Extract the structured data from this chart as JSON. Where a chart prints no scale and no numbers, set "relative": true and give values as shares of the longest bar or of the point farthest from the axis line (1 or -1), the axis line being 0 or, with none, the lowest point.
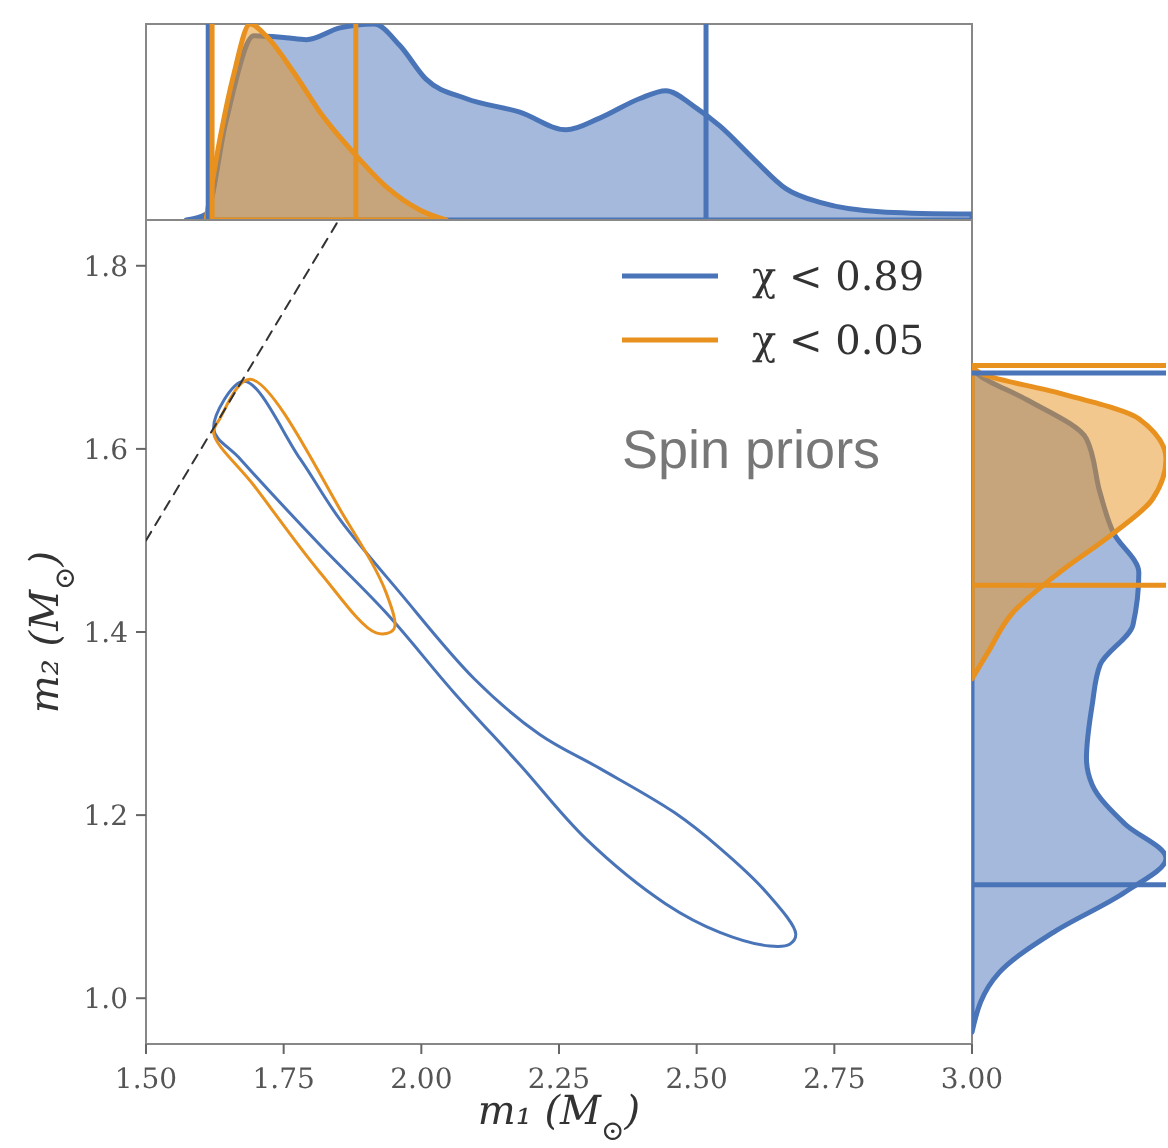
{
  "chart_data": [
    {
      "type": "area",
      "relative": true,
      "xlim": [
        1.5,
        3.0
      ],
      "legend": "bottom right",
      "series": [
        {
          "name": "χ < 0.89",
          "color": "#4a74b8",
          "x": [
            1.573,
            1.609,
            1.645,
            1.696,
            1.754,
            1.791,
            1.852,
            1.914,
            1.961,
            2.008,
            2.081,
            2.179,
            2.263,
            2.324,
            2.397,
            2.444,
            2.495,
            2.542,
            2.604,
            2.662,
            2.724,
            2.844,
            3.0
          ],
          "values": [
            0,
            0.03,
            0.5,
            0.94,
            0.93,
            0.92,
            0.98,
            1,
            0.89,
            0.72,
            0.62,
            0.55,
            0.46,
            0.52,
            0.62,
            0.66,
            0.58,
            0.48,
            0.31,
            0.16,
            0.09,
            0.04,
            0.03
          ]
        },
        {
          "name": "χ < 0.05",
          "color": "#e8911e",
          "x": [
            1.609,
            1.634,
            1.66,
            1.689,
            1.718,
            1.769,
            1.816,
            1.878,
            1.936,
            1.998,
            2.045
          ],
          "values": [
            0,
            0.41,
            0.75,
            1,
            0.94,
            0.75,
            0.55,
            0.34,
            0.17,
            0.05,
            0
          ]
        }
      ],
      "ref_lines": [
        {
          "axis": "x",
          "value": 1.613,
          "color": "#4a74b8"
        },
        {
          "axis": "x",
          "value": 2.517,
          "color": "#4a74b8"
        },
        {
          "axis": "x",
          "value": 1.62,
          "color": "#e8911e"
        },
        {
          "axis": "x",
          "value": 1.881,
          "color": "#e8911e"
        }
      ]
    },
    {
      "type": "line",
      "xlim": [
        1.5,
        3.0
      ],
      "ylim": [
        0.95,
        1.85
      ],
      "xlabel": "m₁ (M$_{⊙}$)",
      "ylabel": "m₂ (M$_{⊙}$)",
      "annotations": [
        "Spin priors"
      ],
      "xticks": [
        {
          "value": 1.5,
          "label": "1.50"
        },
        {
          "value": 1.75,
          "label": "1.75"
        },
        {
          "value": 2.0,
          "label": "2.00"
        },
        {
          "value": 2.25,
          "label": "2.25"
        },
        {
          "value": 2.5,
          "label": "2.50"
        },
        {
          "value": 2.75,
          "label": "2.75"
        },
        {
          "value": 3.0,
          "label": "3.00"
        }
      ],
      "yticks": [
        {
          "value": 1.0,
          "label": "1.0"
        },
        {
          "value": 1.2,
          "label": "1.2"
        },
        {
          "value": 1.4,
          "label": "1.4"
        },
        {
          "value": 1.6,
          "label": "1.6"
        },
        {
          "value": 1.8,
          "label": "1.8"
        }
      ],
      "series": [
        {
          "color": "#333333",
          "line_style": "dashed",
          "x": [
            1.5,
            1.85
          ],
          "values": [
            1.5,
            1.85
          ]
        }
      ]
    },
    {
      "type": "area",
      "orientation": "horizontal",
      "relative": true,
      "ylim": [
        0.95,
        1.85
      ],
      "series": [
        {
          "color": "#4a74b8",
          "x": [
            0.963,
            1.028,
            1.072,
            1.116,
            1.153,
            1.19,
            1.233,
            1.262,
            1.321,
            1.364,
            1.408,
            1.465,
            1.508,
            1.552,
            1.611,
            1.654,
            1.68,
            1.687
          ],
          "values": [
            0,
            0.14,
            0.42,
            0.79,
            1,
            0.79,
            0.62,
            0.59,
            0.62,
            0.66,
            0.83,
            0.86,
            0.73,
            0.66,
            0.59,
            0.28,
            0.04,
            0
          ]
        },
        {
          "color": "#e8911e",
          "x": [
            1.349,
            1.377,
            1.421,
            1.465,
            1.508,
            1.545,
            1.589,
            1.633,
            1.661,
            1.683,
            1.691
          ],
          "values": [
            0,
            0.08,
            0.21,
            0.45,
            0.73,
            0.93,
            1,
            0.86,
            0.45,
            0.04,
            0
          ]
        }
      ],
      "ref_lines": [
        {
          "axis": "y",
          "value": 1.683,
          "color": "#4a74b8"
        },
        {
          "axis": "y",
          "value": 1.124,
          "color": "#4a74b8"
        },
        {
          "axis": "y",
          "value": 1.691,
          "color": "#e8911e"
        },
        {
          "axis": "y",
          "value": 1.451,
          "color": "#e8911e"
        }
      ]
    }
  ]
}
